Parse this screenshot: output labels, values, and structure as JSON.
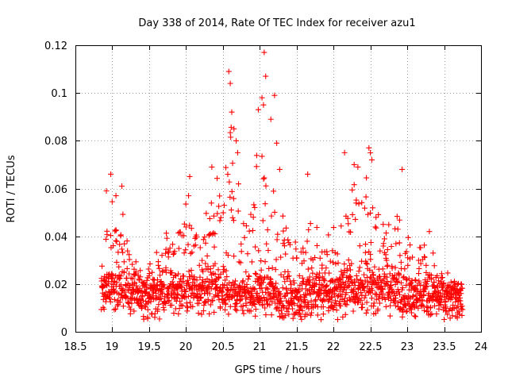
{
  "chart_data": {
    "type": "scatter",
    "title": "Day 338 of 2014, Rate Of TEC Index for receiver azu1",
    "xlabel": "GPS time / hours",
    "ylabel": "ROTI / TECUs",
    "xlim": [
      18.5,
      24
    ],
    "ylim": [
      0,
      0.12
    ],
    "x_ticks": [
      18.5,
      19,
      19.5,
      20,
      20.5,
      21,
      21.5,
      22,
      22.5,
      23,
      23.5,
      24
    ],
    "x_tick_labels": [
      "18.5",
      "19",
      "19.5",
      "20",
      "20.5",
      "21",
      "21.5",
      "22",
      "22.5",
      "23",
      "23.5",
      "24"
    ],
    "y_ticks": [
      0,
      0.02,
      0.04,
      0.06,
      0.08,
      0.1,
      0.12
    ],
    "y_tick_labels": [
      "0",
      "0.02",
      "0.04",
      "0.06",
      "0.08",
      "0.1",
      "0.12"
    ],
    "grid": true,
    "marker": "+",
    "series_color": "#ff0000",
    "data_x_range": [
      18.85,
      23.75
    ],
    "baseline": [
      [
        18.85,
        0.018
      ],
      [
        19.0,
        0.018
      ],
      [
        19.25,
        0.016
      ],
      [
        19.5,
        0.015
      ],
      [
        19.75,
        0.017
      ],
      [
        20.0,
        0.017
      ],
      [
        20.25,
        0.017
      ],
      [
        20.5,
        0.016
      ],
      [
        20.75,
        0.015
      ],
      [
        21.0,
        0.016
      ],
      [
        21.25,
        0.015
      ],
      [
        21.5,
        0.014
      ],
      [
        21.75,
        0.015
      ],
      [
        22.0,
        0.016
      ],
      [
        22.25,
        0.018
      ],
      [
        22.5,
        0.018
      ],
      [
        22.75,
        0.017
      ],
      [
        23.0,
        0.016
      ],
      [
        23.25,
        0.015
      ],
      [
        23.5,
        0.013
      ],
      [
        23.75,
        0.013
      ]
    ],
    "upper_envelope": [
      [
        18.85,
        0.045
      ],
      [
        18.95,
        0.058
      ],
      [
        19.05,
        0.055
      ],
      [
        19.15,
        0.05
      ],
      [
        19.3,
        0.03
      ],
      [
        19.5,
        0.028
      ],
      [
        19.7,
        0.04
      ],
      [
        19.9,
        0.05
      ],
      [
        20.05,
        0.063
      ],
      [
        20.2,
        0.045
      ],
      [
        20.35,
        0.06
      ],
      [
        20.5,
        0.07
      ],
      [
        20.6,
        0.09
      ],
      [
        20.7,
        0.07
      ],
      [
        20.85,
        0.05
      ],
      [
        21.0,
        0.09
      ],
      [
        21.1,
        0.1
      ],
      [
        21.2,
        0.07
      ],
      [
        21.3,
        0.05
      ],
      [
        21.5,
        0.045
      ],
      [
        21.7,
        0.05
      ],
      [
        21.85,
        0.04
      ],
      [
        22.0,
        0.045
      ],
      [
        22.1,
        0.06
      ],
      [
        22.25,
        0.06
      ],
      [
        22.4,
        0.07
      ],
      [
        22.5,
        0.07
      ],
      [
        22.6,
        0.05
      ],
      [
        22.75,
        0.045
      ],
      [
        22.9,
        0.055
      ],
      [
        23.0,
        0.05
      ],
      [
        23.15,
        0.035
      ],
      [
        23.3,
        0.038
      ],
      [
        23.5,
        0.022
      ],
      [
        23.75,
        0.02
      ]
    ],
    "highlighted_points": [
      {
        "x": 18.92,
        "y": 0.059
      },
      {
        "x": 18.98,
        "y": 0.066
      },
      {
        "x": 19.05,
        "y": 0.057
      },
      {
        "x": 19.13,
        "y": 0.061
      },
      {
        "x": 20.05,
        "y": 0.065
      },
      {
        "x": 20.35,
        "y": 0.069
      },
      {
        "x": 20.58,
        "y": 0.109
      },
      {
        "x": 20.6,
        "y": 0.104
      },
      {
        "x": 20.62,
        "y": 0.092
      },
      {
        "x": 20.65,
        "y": 0.085
      },
      {
        "x": 20.68,
        "y": 0.08
      },
      {
        "x": 20.7,
        "y": 0.075
      },
      {
        "x": 20.98,
        "y": 0.093
      },
      {
        "x": 21.03,
        "y": 0.098
      },
      {
        "x": 21.05,
        "y": 0.095
      },
      {
        "x": 21.06,
        "y": 0.117
      },
      {
        "x": 21.08,
        "y": 0.107
      },
      {
        "x": 21.15,
        "y": 0.089
      },
      {
        "x": 21.2,
        "y": 0.099
      },
      {
        "x": 21.23,
        "y": 0.079
      },
      {
        "x": 21.27,
        "y": 0.068
      },
      {
        "x": 21.65,
        "y": 0.066
      },
      {
        "x": 22.15,
        "y": 0.075
      },
      {
        "x": 22.28,
        "y": 0.07
      },
      {
        "x": 22.33,
        "y": 0.069
      },
      {
        "x": 22.48,
        "y": 0.077
      },
      {
        "x": 22.5,
        "y": 0.075
      },
      {
        "x": 22.52,
        "y": 0.072
      },
      {
        "x": 22.93,
        "y": 0.068
      },
      {
        "x": 23.3,
        "y": 0.042
      },
      {
        "x": 23.73,
        "y": 0.02
      }
    ]
  }
}
